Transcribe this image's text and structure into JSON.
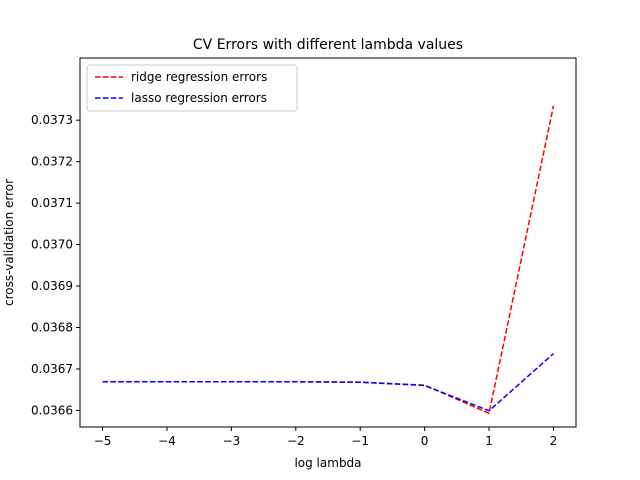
{
  "chart_data": {
    "type": "line",
    "title": "CV Errors with different lambda values",
    "xlabel": "log lambda",
    "ylabel": "cross-validation error",
    "x": [
      -5,
      -4,
      -3,
      -2,
      -1,
      0,
      1,
      2
    ],
    "xlim": [
      -5.35,
      2.35
    ],
    "ylim": [
      0.03656,
      0.03745
    ],
    "xticks": [
      -5,
      -4,
      -3,
      -2,
      -1,
      0,
      1,
      2
    ],
    "xtick_labels": [
      "−5",
      "−4",
      "−3",
      "−2",
      "−1",
      "0",
      "1",
      "2"
    ],
    "yticks": [
      0.0366,
      0.0367,
      0.0368,
      0.0369,
      0.037,
      0.0371,
      0.0372,
      0.0373
    ],
    "ytick_labels": [
      "0.0366",
      "0.0367",
      "0.0368",
      "0.0369",
      "0.0370",
      "0.0371",
      "0.0372",
      "0.0373"
    ],
    "grid": false,
    "legend_position": "upper-left",
    "series": [
      {
        "name": "ridge regression errors",
        "color": "#ff0000",
        "line_style": "dashed",
        "values": [
          0.036669,
          0.036669,
          0.036669,
          0.036669,
          0.036668,
          0.036661,
          0.036593,
          0.037335
        ]
      },
      {
        "name": "lasso regression errors",
        "color": "#0000ff",
        "line_style": "dashed",
        "values": [
          0.036669,
          0.036669,
          0.036669,
          0.036669,
          0.036668,
          0.03666,
          0.036599,
          0.036737
        ]
      }
    ]
  }
}
